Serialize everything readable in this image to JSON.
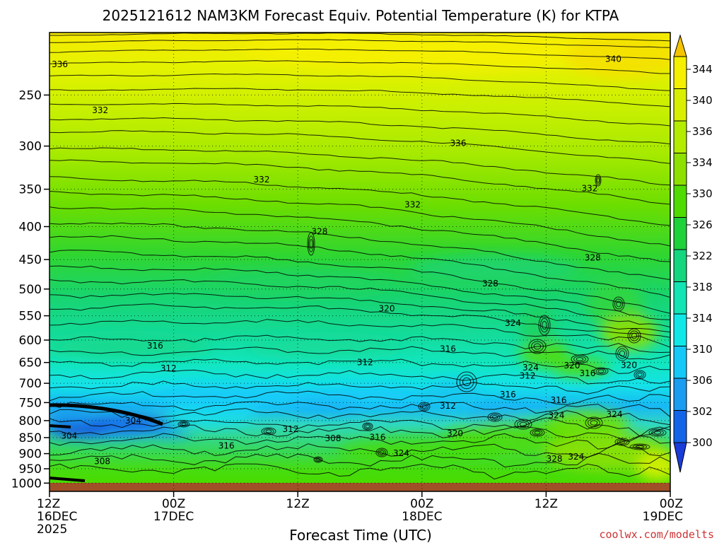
{
  "chart_data": {
    "type": "heatmap",
    "title": "2025121612 NAM3KM Forecast Equiv. Potential Temperature (K) for KTPA",
    "xlabel": "Forecast Time (UTC)",
    "ylabel": "",
    "credit": "coolwx.com/modelts",
    "x_hours_range": [
      0,
      60
    ],
    "pressure_range_hPa": [
      1030,
      200
    ],
    "x_ticks": [
      {
        "hour": 0,
        "time": "12Z",
        "date": "16DEC",
        "year": "2025"
      },
      {
        "hour": 12,
        "time": "00Z",
        "date": "17DEC",
        "year": ""
      },
      {
        "hour": 24,
        "time": "12Z",
        "date": "",
        "year": ""
      },
      {
        "hour": 36,
        "time": "00Z",
        "date": "18DEC",
        "year": ""
      },
      {
        "hour": 48,
        "time": "12Z",
        "date": "",
        "year": ""
      },
      {
        "hour": 60,
        "time": "00Z",
        "date": "19DEC",
        "year": ""
      }
    ],
    "y_ticks": [
      "250",
      "300",
      "350",
      "400",
      "450",
      "500",
      "550",
      "600",
      "650",
      "700",
      "750",
      "800",
      "850",
      "900",
      "950",
      "1000"
    ],
    "colorbar": {
      "labels": [
        "344",
        "340",
        "336",
        "334",
        "330",
        "326",
        "322",
        "318",
        "314",
        "310",
        "306",
        "302",
        "300"
      ],
      "colors": [
        "#f5c400",
        "#f5f000",
        "#d8f000",
        "#b4ec00",
        "#8ee000",
        "#50dc00",
        "#1ed23a",
        "#14d67e",
        "#12e4b4",
        "#10e8e8",
        "#14c8f8",
        "#1a9cf0",
        "#1464e8",
        "#1a3cd8"
      ]
    },
    "contour_labels": [
      {
        "text": "336",
        "hour": 1.0,
        "p": 224
      },
      {
        "text": "340",
        "hour": 54.5,
        "p": 220
      },
      {
        "text": "332",
        "hour": 4.9,
        "p": 264
      },
      {
        "text": "336",
        "hour": 39.5,
        "p": 297
      },
      {
        "text": "332",
        "hour": 20.5,
        "p": 338
      },
      {
        "text": "332",
        "hour": 52.2,
        "p": 349
      },
      {
        "text": "332",
        "hour": 35.1,
        "p": 370
      },
      {
        "text": "328",
        "hour": 26.1,
        "p": 407
      },
      {
        "text": "328",
        "hour": 52.5,
        "p": 447
      },
      {
        "text": "328",
        "hour": 42.6,
        "p": 490
      },
      {
        "text": "320",
        "hour": 32.6,
        "p": 536
      },
      {
        "text": "324",
        "hour": 44.8,
        "p": 565
      },
      {
        "text": "316",
        "hour": 10.2,
        "p": 612
      },
      {
        "text": "316",
        "hour": 38.5,
        "p": 619
      },
      {
        "text": "324",
        "hour": 46.5,
        "p": 662
      },
      {
        "text": "320",
        "hour": 50.5,
        "p": 657
      },
      {
        "text": "320",
        "hour": 56.0,
        "p": 656
      },
      {
        "text": "312",
        "hour": 11.5,
        "p": 664
      },
      {
        "text": "312",
        "hour": 30.5,
        "p": 650
      },
      {
        "text": "316",
        "hour": 52.0,
        "p": 676
      },
      {
        "text": "312",
        "hour": 46.2,
        "p": 682
      },
      {
        "text": "316",
        "hour": 44.3,
        "p": 729
      },
      {
        "text": "316",
        "hour": 49.2,
        "p": 744
      },
      {
        "text": "312",
        "hour": 38.5,
        "p": 759
      },
      {
        "text": "324",
        "hour": 49.0,
        "p": 785
      },
      {
        "text": "324",
        "hour": 54.6,
        "p": 782
      },
      {
        "text": "304",
        "hour": 8.1,
        "p": 800
      },
      {
        "text": "312",
        "hour": 23.3,
        "p": 825
      },
      {
        "text": "320",
        "hour": 39.2,
        "p": 837
      },
      {
        "text": "304",
        "hour": 1.9,
        "p": 845
      },
      {
        "text": "308",
        "hour": 27.4,
        "p": 852
      },
      {
        "text": "316",
        "hour": 31.7,
        "p": 849
      },
      {
        "text": "316",
        "hour": 17.1,
        "p": 875
      },
      {
        "text": "324",
        "hour": 34.0,
        "p": 899
      },
      {
        "text": "308",
        "hour": 5.1,
        "p": 925
      },
      {
        "text": "328",
        "hour": 48.8,
        "p": 917
      },
      {
        "text": "324",
        "hour": 50.9,
        "p": 910
      }
    ]
  }
}
